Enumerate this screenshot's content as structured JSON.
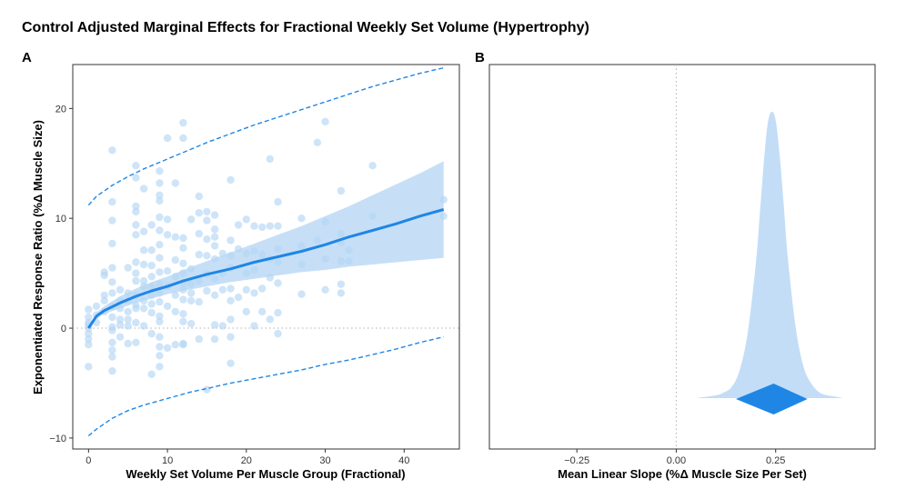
{
  "figure": {
    "title": "Control Adjusted Marginal Effects for Fractional Weekly Set Volume (Hypertrophy)"
  },
  "colors": {
    "accent": "#1f86e6",
    "band": "#bcd9f6",
    "point": "#b4d5f5",
    "ref_line": "#b0b0b0"
  },
  "chart_data": [
    {
      "panel": "A",
      "type": "scatter",
      "xlabel": "Weekly Set Volume Per Muscle Group (Fractional)",
      "ylabel": "Exponentiated Response Ratio (%Δ Muscle Size)",
      "xlim": [
        -2,
        47
      ],
      "ylim": [
        -11,
        24
      ],
      "xticks": [
        0,
        10,
        20,
        30,
        40
      ],
      "yticks": [
        -10,
        0,
        10,
        20
      ],
      "grid": false,
      "reference_line_y": 0,
      "fit_line": {
        "x": [
          0,
          1,
          2,
          4,
          6,
          8,
          10,
          12,
          15,
          18,
          21,
          24,
          27,
          30,
          33,
          36,
          39,
          42,
          45
        ],
        "y": [
          0.0,
          1.1,
          1.6,
          2.3,
          2.9,
          3.4,
          3.8,
          4.3,
          4.9,
          5.4,
          6.0,
          6.5,
          7.0,
          7.6,
          8.3,
          8.9,
          9.5,
          10.2,
          10.8
        ]
      },
      "confidence_band": {
        "x": [
          0,
          1,
          2,
          4,
          6,
          8,
          10,
          12,
          15,
          18,
          21,
          24,
          27,
          30,
          33,
          36,
          39,
          42,
          45
        ],
        "lower": [
          0.0,
          0.9,
          1.3,
          1.8,
          2.3,
          2.7,
          3.1,
          3.4,
          3.8,
          4.2,
          4.5,
          4.8,
          5.1,
          5.3,
          5.6,
          5.8,
          6.0,
          6.2,
          6.4
        ],
        "upper": [
          0.0,
          1.4,
          2.0,
          2.9,
          3.6,
          4.2,
          4.7,
          5.3,
          6.1,
          6.9,
          7.7,
          8.5,
          9.3,
          10.2,
          11.1,
          12.1,
          13.1,
          14.1,
          15.2
        ]
      },
      "prediction_interval": {
        "x": [
          0,
          1,
          2,
          3,
          5,
          7,
          9,
          11,
          13,
          15,
          18,
          21,
          24,
          27,
          30,
          33,
          36,
          39,
          42,
          45
        ],
        "lower": [
          -9.8,
          -9.2,
          -8.7,
          -8.2,
          -7.5,
          -7.0,
          -6.6,
          -6.2,
          -5.8,
          -5.5,
          -5.0,
          -4.6,
          -4.2,
          -3.8,
          -3.3,
          -2.9,
          -2.4,
          -1.9,
          -1.3,
          -0.8
        ],
        "upper": [
          11.2,
          12.0,
          12.5,
          13.0,
          13.8,
          14.5,
          15.1,
          15.7,
          16.3,
          16.9,
          17.7,
          18.5,
          19.2,
          19.9,
          20.6,
          21.3,
          22.0,
          22.6,
          23.2,
          23.7
        ]
      },
      "points": {
        "x": [
          0,
          0,
          0,
          0,
          0,
          0,
          0,
          0,
          0,
          1,
          1,
          1,
          2,
          2,
          2,
          2,
          2,
          3,
          3,
          3,
          3,
          3,
          3,
          3,
          3,
          3,
          3,
          3,
          3,
          3,
          3,
          3,
          4,
          4,
          4,
          4,
          4,
          4,
          5,
          5,
          5,
          5,
          5,
          5,
          5,
          6,
          6,
          6,
          6,
          6,
          6,
          6,
          6,
          6,
          6,
          6,
          6,
          6,
          6,
          7,
          7,
          7,
          7,
          7,
          7,
          7,
          7,
          7,
          8,
          8,
          8,
          8,
          8,
          8,
          8,
          8,
          8,
          8,
          9,
          9,
          9,
          9,
          9,
          9,
          9,
          9,
          9,
          9,
          9,
          9,
          9,
          9,
          9,
          9,
          9,
          9,
          10,
          10,
          10,
          10,
          10,
          10,
          10,
          11,
          11,
          11,
          11,
          11,
          11,
          11,
          12,
          12,
          12,
          12,
          12,
          12,
          12,
          12,
          12,
          12,
          12,
          12,
          12,
          13,
          13,
          13,
          13,
          13,
          13,
          14,
          14,
          14,
          14,
          14,
          14,
          14,
          15,
          15,
          15,
          15,
          15,
          15,
          15,
          16,
          16,
          16,
          16,
          16,
          16,
          16,
          16,
          16,
          17,
          17,
          17,
          17,
          18,
          18,
          18,
          18,
          18,
          18,
          18,
          18,
          18,
          19,
          19,
          19,
          20,
          20,
          20,
          20,
          20,
          21,
          21,
          21,
          21,
          21,
          22,
          22,
          22,
          22,
          23,
          23,
          23,
          23,
          23,
          24,
          24,
          24,
          24,
          24,
          24,
          24,
          27,
          27,
          27,
          27,
          29,
          29,
          30,
          30,
          30,
          30,
          32,
          32,
          32,
          32,
          32,
          32,
          33,
          33,
          36,
          36,
          45,
          45
        ],
        "y": [
          1.7,
          1.0,
          0.5,
          0.0,
          -0.5,
          -1.0,
          -1.5,
          -3.5,
          0.3,
          0.5,
          1.2,
          2.0,
          1.5,
          2.5,
          3.0,
          4.8,
          5.1,
          16.2,
          11.5,
          9.8,
          7.7,
          5.5,
          4.2,
          3.2,
          2.0,
          1.0,
          0.1,
          -0.2,
          -1.3,
          -2.0,
          -2.6,
          -3.9,
          2.5,
          3.5,
          1.8,
          0.8,
          0.3,
          -0.8,
          5.5,
          3.2,
          2.5,
          1.5,
          0.8,
          0.2,
          -1.4,
          14.8,
          13.7,
          11.1,
          10.6,
          9.4,
          8.5,
          6.0,
          5.0,
          4.3,
          3.0,
          2.1,
          1.8,
          0.5,
          -1.3,
          12.7,
          8.8,
          7.1,
          5.8,
          4.3,
          3.8,
          2.5,
          1.8,
          0.2,
          9.4,
          7.1,
          5.7,
          4.7,
          3.8,
          3.0,
          2.2,
          1.4,
          -0.5,
          -4.2,
          14.3,
          13.2,
          12.1,
          11.6,
          10.1,
          8.9,
          7.6,
          6.4,
          5.1,
          4.0,
          3.2,
          2.4,
          1.1,
          0.6,
          -0.8,
          -1.7,
          -3.5,
          -2.5,
          17.3,
          9.9,
          8.5,
          5.2,
          3.8,
          2.0,
          -1.8,
          13.2,
          8.3,
          6.2,
          4.7,
          3.0,
          1.5,
          -1.5,
          18.7,
          17.3,
          8.2,
          7.3,
          5.9,
          5.0,
          4.1,
          3.5,
          2.6,
          1.3,
          0.6,
          -1.5,
          -1.4,
          9.9,
          5.4,
          4.0,
          3.2,
          2.5,
          0.4,
          12.0,
          10.5,
          8.6,
          6.7,
          4.3,
          2.4,
          -1.0,
          10.6,
          9.8,
          8.1,
          6.6,
          4.9,
          3.4,
          -5.6,
          10.3,
          9.0,
          8.3,
          7.5,
          6.3,
          4.5,
          3.0,
          0.3,
          -1.0,
          6.8,
          5.0,
          3.5,
          0.2,
          13.5,
          8.0,
          6.6,
          5.5,
          3.6,
          2.5,
          0.8,
          -0.8,
          -3.2,
          9.4,
          7.2,
          2.8,
          9.9,
          6.8,
          5.0,
          3.5,
          1.5,
          9.3,
          7.0,
          5.3,
          3.2,
          0.2,
          9.2,
          6.7,
          3.6,
          1.5,
          15.4,
          9.3,
          6.3,
          4.6,
          0.8,
          11.5,
          9.3,
          7.2,
          6.0,
          4.1,
          1.4,
          -0.5,
          10.0,
          7.5,
          5.8,
          3.1,
          16.9,
          8.0,
          18.8,
          9.7,
          6.3,
          3.5,
          12.5,
          8.6,
          7.8,
          6.1,
          4.0,
          3.2,
          7.1,
          6.1,
          14.8,
          10.2,
          11.7,
          10.2
        ]
      }
    },
    {
      "panel": "B",
      "type": "area",
      "xlabel": "Mean Linear Slope (%Δ Muscle Size Per Set)",
      "xlim": [
        -0.47,
        0.5
      ],
      "xticks": [
        -0.25,
        0.0,
        0.25
      ],
      "xticklabels": [
        "−0.25",
        "0.00",
        "0.25"
      ],
      "grid": false,
      "reference_line_x": 0,
      "density": {
        "x": [
          0.05,
          0.1,
          0.12,
          0.14,
          0.16,
          0.18,
          0.2,
          0.21,
          0.22,
          0.23,
          0.24,
          0.25,
          0.26,
          0.27,
          0.28,
          0.3,
          0.32,
          0.34,
          0.36,
          0.38,
          0.4,
          0.42
        ],
        "y": [
          0.0,
          0.01,
          0.02,
          0.04,
          0.1,
          0.23,
          0.47,
          0.64,
          0.82,
          0.96,
          1.0,
          0.97,
          0.85,
          0.68,
          0.5,
          0.25,
          0.11,
          0.05,
          0.02,
          0.01,
          0.005,
          0.0
        ]
      },
      "point_estimate": 0.245,
      "interval": [
        0.15,
        0.33
      ]
    }
  ]
}
